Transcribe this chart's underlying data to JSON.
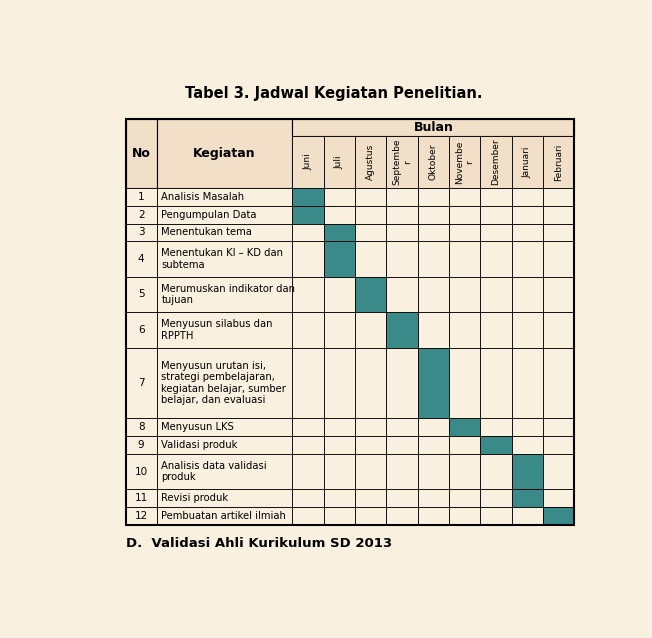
{
  "title": "Tabel 3. Jadwal Kegiatan Penelitian.",
  "footer": "D.  Validasi Ahli Kurikulum SD 2013",
  "months": [
    "Juni",
    "Juli",
    "Agustus",
    "Septembe\nr",
    "Oktober",
    "Novembe\nr",
    "Desember",
    "Januari",
    "Februari"
  ],
  "rows": [
    {
      "no": 1,
      "kegiatan": "Analisis Masalah",
      "filled": [
        0
      ]
    },
    {
      "no": 2,
      "kegiatan": "Pengumpulan Data",
      "filled": [
        0
      ]
    },
    {
      "no": 3,
      "kegiatan": "Menentukan tema",
      "filled": [
        1
      ]
    },
    {
      "no": 4,
      "kegiatan": "Menentukan KI – KD dan\nsubtema",
      "filled": [
        1
      ]
    },
    {
      "no": 5,
      "kegiatan": "Merumuskan indikator dan\ntujuan",
      "filled": [
        2
      ]
    },
    {
      "no": 6,
      "kegiatan": "Menyusun silabus dan\nRPPTH",
      "filled": [
        3
      ]
    },
    {
      "no": 7,
      "kegiatan": "Menyusun urutan isi,\nstrategi pembelajaran,\nkegiatan belajar, sumber\nbelajar, dan evaluasi",
      "filled": [
        4
      ]
    },
    {
      "no": 8,
      "kegiatan": "Menyusun LKS",
      "filled": [
        5
      ]
    },
    {
      "no": 9,
      "kegiatan": "Validasi produk",
      "filled": [
        6
      ]
    },
    {
      "no": 10,
      "kegiatan": "Analisis data validasi\nproduk",
      "filled": [
        7
      ]
    },
    {
      "no": 11,
      "kegiatan": "Revisi produk",
      "filled": [
        7
      ]
    },
    {
      "no": 12,
      "kegiatan": "Pembuatan artikel ilmiah",
      "filled": [
        8
      ]
    }
  ],
  "fill_color": "#3a8a8a",
  "header_bg": "#f2dfc8",
  "cell_bg": "#faf0e0",
  "page_bg": "#faf0e0",
  "border_color": "#555555",
  "title_fontsize": 10.5,
  "footer_fontsize": 9.5
}
